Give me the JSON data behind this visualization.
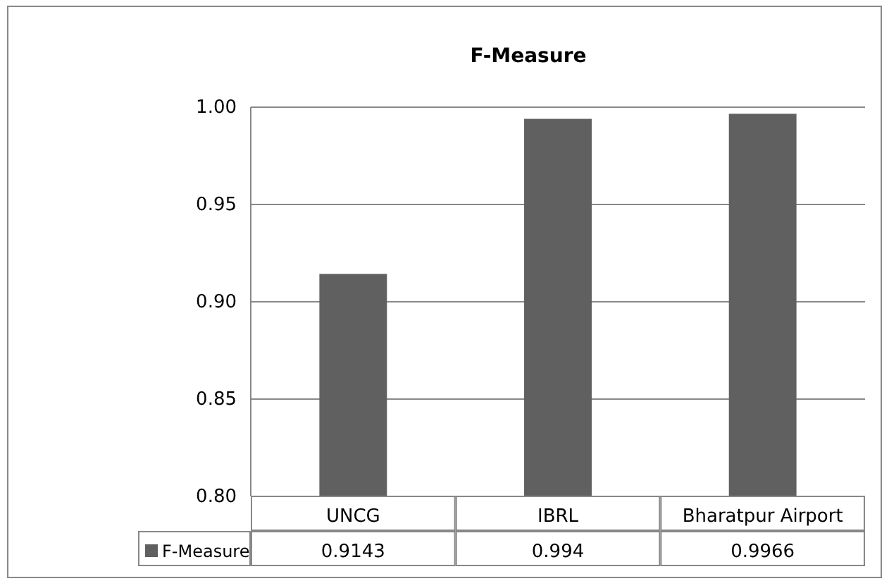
{
  "chart_data": {
    "type": "bar",
    "title": "F-Measure",
    "categories": [
      "UNCG",
      "IBRL",
      "Bharatpur Airport"
    ],
    "series": [
      {
        "name": "F-Measure",
        "color": "#606060",
        "values": [
          0.9143,
          0.994,
          0.9966
        ]
      }
    ],
    "ylim": [
      0.8,
      1.0
    ],
    "yticks": [
      {
        "value": 0.8,
        "label": "0.80"
      },
      {
        "value": 0.85,
        "label": "0.85"
      },
      {
        "value": 0.9,
        "label": "0.90"
      },
      {
        "value": 0.95,
        "label": "0.95"
      },
      {
        "value": 1.0,
        "label": "1.00"
      }
    ],
    "grid": "y",
    "data_labels": true
  }
}
